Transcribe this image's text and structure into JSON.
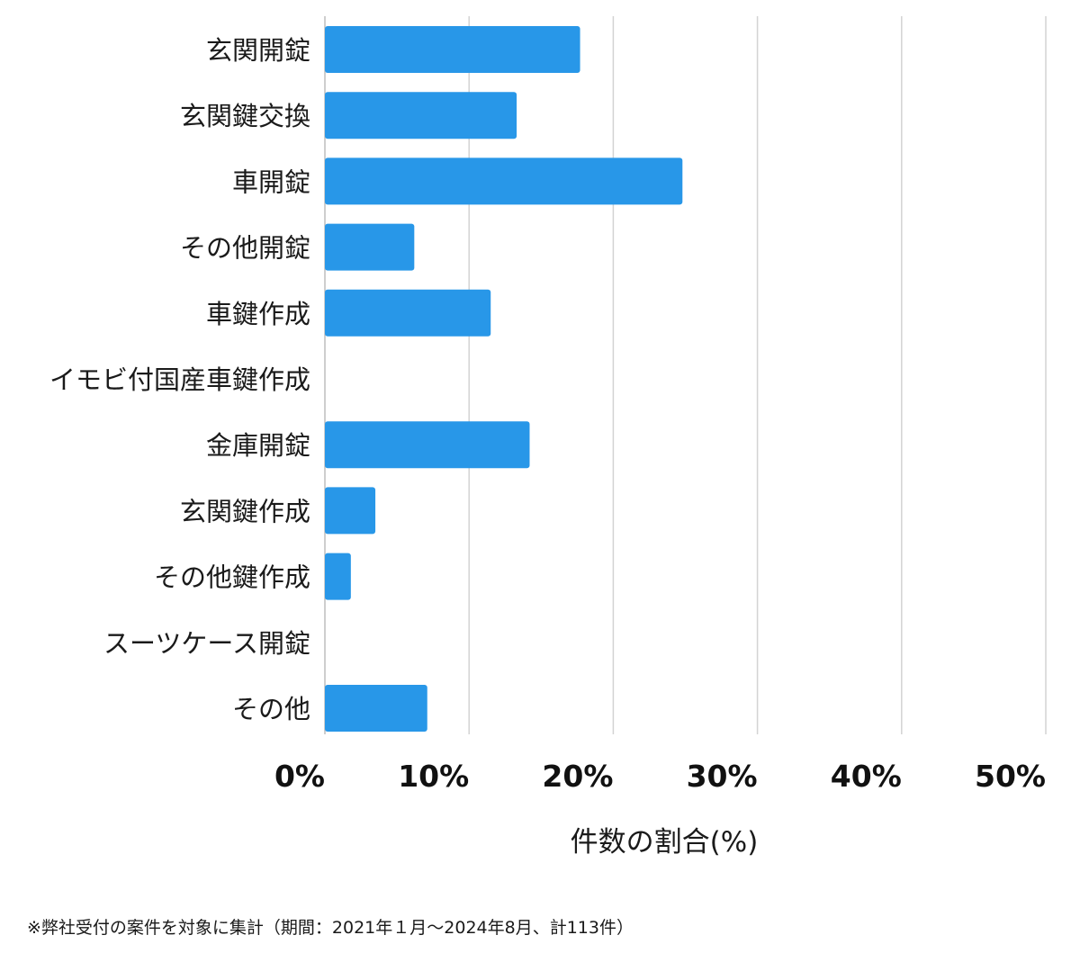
{
  "chart_data": {
    "type": "bar",
    "orientation": "horizontal",
    "categories": [
      "玄関開錠",
      "玄関鍵交換",
      "車開錠",
      "その他開錠",
      "車鍵作成",
      "イモビ付国産車鍵作成",
      "金庫開錠",
      "玄関鍵作成",
      "その他鍵作成",
      "スーツケース開錠",
      "その他"
    ],
    "values": [
      17.7,
      13.3,
      24.8,
      6.2,
      11.5,
      0,
      14.2,
      3.5,
      1.8,
      0,
      7.1
    ],
    "xlabel": "件数の割合(%)",
    "xlim": [
      0,
      50
    ],
    "xticks": [
      0,
      10,
      20,
      30,
      40,
      50
    ],
    "xtick_labels": [
      "0%",
      "10%",
      "20%",
      "30%",
      "40%",
      "50%"
    ],
    "grid": "vertical",
    "bar_color": "#2897e8"
  },
  "footnote": "※弊社受付の案件を対象に集計（期間：2021年１月〜2024年8月、計113件）"
}
